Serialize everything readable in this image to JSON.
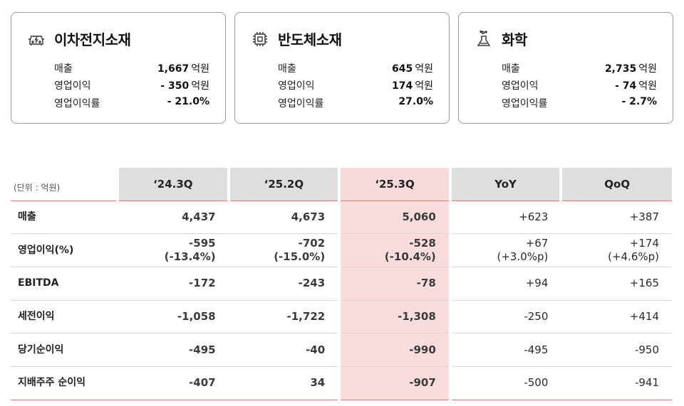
{
  "cards": [
    {
      "title": "이차전지소재",
      "icon": "battery-car-icon",
      "rows": [
        {
          "label": "매출",
          "value": "1,667",
          "unit": "억원"
        },
        {
          "label": "영업이익",
          "value": "- 350",
          "unit": "억원"
        },
        {
          "label": "영업이익률",
          "value": "- 21.0%",
          "unit": ""
        }
      ]
    },
    {
      "title": "반도체소재",
      "icon": "chip-icon",
      "rows": [
        {
          "label": "매출",
          "value": "645",
          "unit": "억원"
        },
        {
          "label": "영업이익",
          "value": "174",
          "unit": "억원"
        },
        {
          "label": "영업이익률",
          "value": "27.0%",
          "unit": ""
        }
      ]
    },
    {
      "title": "화학",
      "icon": "flask-icon",
      "rows": [
        {
          "label": "매출",
          "value": "2,735",
          "unit": "억원"
        },
        {
          "label": "영업이익",
          "value": "- 74",
          "unit": "억원"
        },
        {
          "label": "영업이익률",
          "value": "- 2.7%",
          "unit": ""
        }
      ]
    }
  ],
  "table": {
    "unit_label": "(단위 : 억원)",
    "headers": [
      "‘24.3Q",
      "‘25.2Q",
      "‘25.3Q",
      "YoY",
      "QoQ"
    ],
    "highlight_color": "#fbdcdc",
    "rows": [
      {
        "label": "매출",
        "cells": [
          [
            "4,437"
          ],
          [
            "4,673"
          ],
          [
            "5,060"
          ],
          [
            "+623"
          ],
          [
            "+387"
          ]
        ]
      },
      {
        "label": "영업이익(%)",
        "cells": [
          [
            "-595",
            "(-13.4%)"
          ],
          [
            "-702",
            "(-15.0%)"
          ],
          [
            "-528",
            "(-10.4%)"
          ],
          [
            "+67",
            "(+3.0%p)"
          ],
          [
            "+174",
            "(+4.6%p)"
          ]
        ]
      },
      {
        "label": "EBITDA",
        "cells": [
          [
            "-172"
          ],
          [
            "-243"
          ],
          [
            "-78"
          ],
          [
            "+94"
          ],
          [
            "+165"
          ]
        ]
      },
      {
        "label": "세전이익",
        "cells": [
          [
            "-1,058"
          ],
          [
            "-1,722"
          ],
          [
            "-1,308"
          ],
          [
            "-250"
          ],
          [
            "+414"
          ]
        ]
      },
      {
        "label": "당기순이익",
        "cells": [
          [
            "-495"
          ],
          [
            "-40"
          ],
          [
            "-990"
          ],
          [
            "-495"
          ],
          [
            "-950"
          ]
        ]
      },
      {
        "label": "지배주주 순이익",
        "cells": [
          [
            "-407"
          ],
          [
            "34"
          ],
          [
            "-907"
          ],
          [
            "-500"
          ],
          [
            "-941"
          ]
        ]
      }
    ]
  }
}
